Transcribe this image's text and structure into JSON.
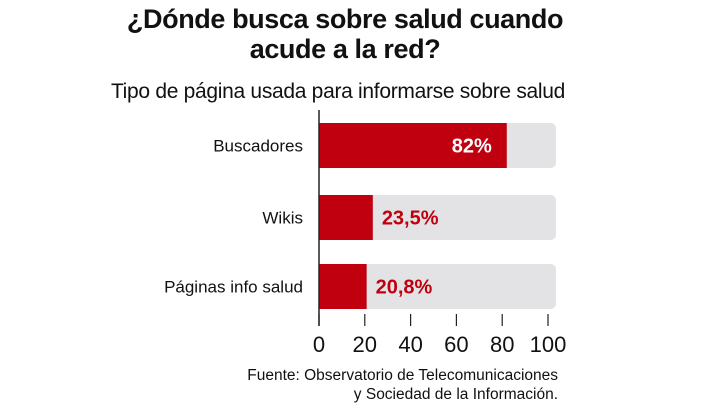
{
  "title": "¿Dónde busca sobre salud cuando acude a la red?",
  "title_lines": [
    "¿Dónde busca sobre salud cuando",
    "acude a la red?"
  ],
  "subtitle": "Tipo de página usada para informarse sobre salud",
  "source_lines": [
    "Fuente: Observatorio de Telecomunicaciones",
    "y Sociedad de la Información."
  ],
  "colors": {
    "bar": "#c0000f",
    "track": "#e3e3e5",
    "value_on_bar": "#ffffff",
    "value_off_bar": "#c0000f",
    "axis": "#222222"
  },
  "chart_data": {
    "type": "bar",
    "orientation": "horizontal",
    "categories": [
      "Buscadores",
      "Wikis",
      "Páginas info salud"
    ],
    "values": [
      82,
      23.5,
      20.8
    ],
    "value_labels": [
      "82%",
      "23,5%",
      "20,8%"
    ],
    "xlim": [
      0,
      100
    ],
    "xticks": [
      0,
      20,
      40,
      60,
      80,
      100
    ],
    "xtick_labels": [
      "0",
      "20",
      "40",
      "60",
      "80",
      "100"
    ],
    "grid": false,
    "legend": "none"
  }
}
